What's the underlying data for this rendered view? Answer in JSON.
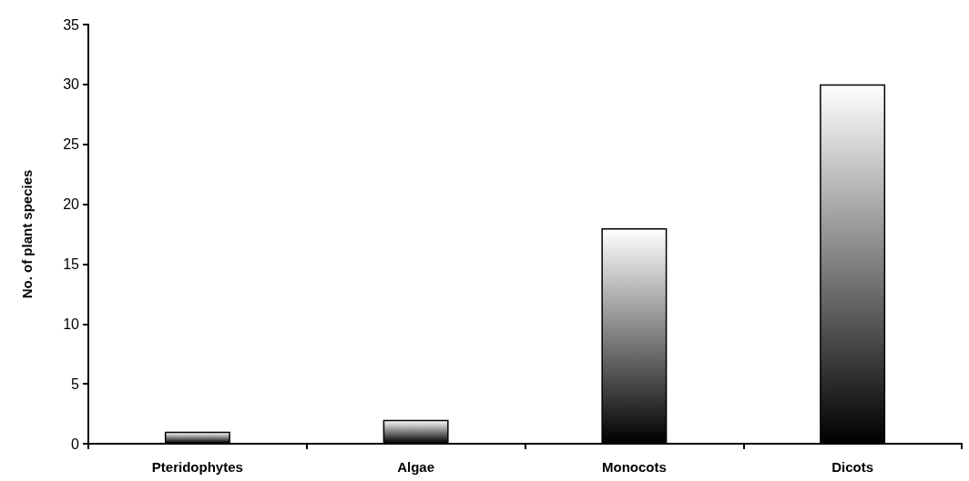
{
  "chart_data": {
    "type": "bar",
    "ylabel": "No. of plant species",
    "categories": [
      "Pteridophytes",
      "Algae",
      "Monocots",
      "Dicots"
    ],
    "values": [
      1,
      2,
      18,
      30
    ],
    "color": "#000000",
    "ylim": [
      0,
      35
    ],
    "yticks": [
      0,
      5,
      10,
      15,
      20,
      25,
      30,
      35
    ],
    "grid": false
  }
}
